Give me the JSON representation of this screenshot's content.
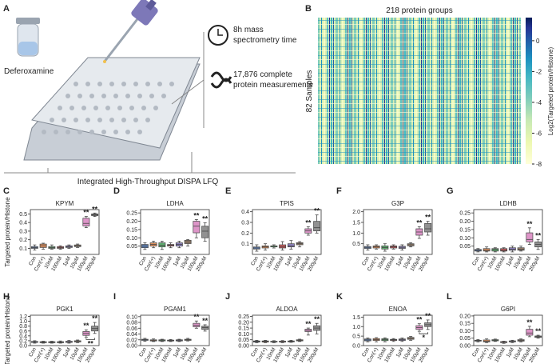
{
  "diagram": {
    "panel": "A",
    "compound": "Deferoxamine",
    "clock_text": [
      "8h mass",
      "spectrometry time"
    ],
    "measure_text": [
      "17,876 complete",
      "protein measurements"
    ],
    "caption": "Integrated High-Throughput DISPA LFQ"
  },
  "heatmap": {
    "panel": "B",
    "title": "218 protein groups",
    "ylabel": "82 Samples",
    "colorbar_label": "Log2(Targeted protein/Histone)",
    "clim": [
      -8,
      1.5
    ],
    "cticks": [
      0,
      -2,
      -4,
      -6,
      -8
    ]
  },
  "chart_data": [
    {
      "type": "box",
      "panel": "C",
      "title": "KPYM",
      "ylabel": "Targeted protein/Histone",
      "categories": [
        "Con",
        "Con(+)",
        "10nM",
        "100nM",
        "1μM",
        "10μM",
        "100μM",
        "200μM"
      ],
      "colors": [
        "#5b7fb8",
        "#e0915e",
        "#60ad70",
        "#c95a5c",
        "#8c80bd",
        "#9a806b",
        "#dd95c8",
        "#919191"
      ],
      "boxes": [
        [
          0.08,
          0.1,
          0.11,
          0.12,
          0.14
        ],
        [
          0.09,
          0.11,
          0.13,
          0.15,
          0.16
        ],
        [
          0.09,
          0.1,
          0.11,
          0.12,
          0.14
        ],
        [
          0.09,
          0.1,
          0.11,
          0.12,
          0.13
        ],
        [
          0.1,
          0.11,
          0.12,
          0.13,
          0.14
        ],
        [
          0.11,
          0.12,
          0.13,
          0.14,
          0.15
        ],
        [
          0.34,
          0.36,
          0.39,
          0.45,
          0.47
        ],
        [
          0.47,
          0.48,
          0.49,
          0.5,
          0.51
        ]
      ],
      "ylim": [
        0.03,
        0.55
      ],
      "yticks": [
        0.1,
        0.2,
        0.3,
        0.4,
        0.5
      ],
      "annotations": [
        {
          "text": "**",
          "category": "100μM"
        },
        {
          "text": "**",
          "category": "200μM"
        }
      ]
    },
    {
      "type": "box",
      "panel": "D",
      "title": "LDHA",
      "categories": [
        "Con",
        "Con(+)",
        "10nM",
        "100nM",
        "1μM",
        "10μM",
        "100μM",
        "200μM"
      ],
      "colors": [
        "#5b7fb8",
        "#e0915e",
        "#60ad70",
        "#c95a5c",
        "#8c80bd",
        "#9a806b",
        "#dd95c8",
        "#919191"
      ],
      "boxes": [
        [
          0.03,
          0.04,
          0.05,
          0.06,
          0.07
        ],
        [
          0.04,
          0.05,
          0.06,
          0.07,
          0.08
        ],
        [
          0.03,
          0.045,
          0.055,
          0.07,
          0.08
        ],
        [
          0.04,
          0.05,
          0.055,
          0.06,
          0.07
        ],
        [
          0.04,
          0.05,
          0.06,
          0.07,
          0.08
        ],
        [
          0.05,
          0.065,
          0.075,
          0.085,
          0.09
        ],
        [
          0.1,
          0.13,
          0.17,
          0.2,
          0.21
        ],
        [
          0.08,
          0.1,
          0.14,
          0.17,
          0.19
        ]
      ],
      "ylim": [
        0,
        0.27
      ],
      "yticks": [
        0.05,
        {
          "value": 0.1,
          "label": "0.10"
        },
        0.15,
        {
          "value": 0.2,
          "label": "0.20"
        },
        0.25
      ],
      "annotations": [
        {
          "text": "**",
          "category": "100μM"
        },
        {
          "text": "**",
          "category": "200μM"
        }
      ]
    },
    {
      "type": "box",
      "panel": "E",
      "title": "TPIS",
      "categories": [
        "Con",
        "Con(+)",
        "10nM",
        "100nM",
        "1μM",
        "10μM",
        "100μM",
        "200μM"
      ],
      "colors": [
        "#5b7fb8",
        "#e0915e",
        "#60ad70",
        "#c95a5c",
        "#8c80bd",
        "#9a806b",
        "#dd95c8",
        "#919191"
      ],
      "boxes": [
        [
          0.03,
          0.05,
          0.06,
          0.07,
          0.09
        ],
        [
          0.04,
          0.06,
          0.07,
          0.08,
          0.1
        ],
        [
          0.06,
          0.07,
          0.08,
          0.08,
          0.09
        ],
        [
          0.04,
          0.06,
          0.07,
          0.09,
          0.12
        ],
        [
          0.05,
          0.07,
          0.08,
          0.1,
          0.13
        ],
        [
          0.07,
          0.09,
          0.1,
          0.11,
          0.12
        ],
        [
          0.18,
          0.2,
          0.22,
          0.24,
          0.26
        ],
        [
          0.2,
          0.22,
          0.25,
          0.31,
          0.37
        ]
      ],
      "ylim": [
        0,
        0.42
      ],
      "yticks": [
        0.1,
        0.2,
        0.3,
        0.4
      ],
      "annotations": [
        {
          "text": "**",
          "category": "100μM"
        },
        {
          "text": "**",
          "category": "200μM"
        }
      ]
    },
    {
      "type": "box",
      "panel": "F",
      "title": "G3P",
      "categories": [
        "Con",
        "Con(+)",
        "10nM",
        "100nM",
        "1μM",
        "10μM",
        "100μM",
        "200μM"
      ],
      "colors": [
        "#5b7fb8",
        "#e0915e",
        "#60ad70",
        "#c95a5c",
        "#8c80bd",
        "#9a806b",
        "#dd95c8",
        "#919191"
      ],
      "boxes": [
        [
          0.2,
          0.28,
          0.33,
          0.37,
          0.45
        ],
        [
          0.25,
          0.3,
          0.35,
          0.4,
          0.45
        ],
        [
          0.15,
          0.25,
          0.32,
          0.4,
          0.5
        ],
        [
          0.25,
          0.3,
          0.35,
          0.4,
          0.45
        ],
        [
          0.2,
          0.28,
          0.33,
          0.38,
          0.45
        ],
        [
          0.35,
          0.4,
          0.45,
          0.5,
          0.55
        ],
        [
          0.75,
          0.9,
          1.05,
          1.2,
          1.3
        ],
        [
          0.9,
          1.05,
          1.2,
          1.45,
          1.55
        ]
      ],
      "ylim": [
        0,
        2.1
      ],
      "yticks": [
        0.5,
        {
          "value": 1,
          "label": "1.0"
        },
        1.5,
        {
          "value": 2,
          "label": "2.0"
        }
      ],
      "annotations": [
        {
          "text": "**",
          "category": "100μM"
        },
        {
          "text": "**",
          "category": "200μM"
        }
      ]
    },
    {
      "type": "box",
      "panel": "G",
      "title": "LDHB",
      "categories": [
        "Con",
        "Con(+)",
        "10nM",
        "100nM",
        "1μM",
        "10μM",
        "100μM",
        "200μM"
      ],
      "colors": [
        "#5b7fb8",
        "#e0915e",
        "#60ad70",
        "#c95a5c",
        "#8c80bd",
        "#9a806b",
        "#dd95c8",
        "#919191"
      ],
      "boxes": [
        [
          0.015,
          0.02,
          0.025,
          0.03,
          0.035
        ],
        [
          0.015,
          0.02,
          0.025,
          0.035,
          0.045
        ],
        [
          0.015,
          0.02,
          0.03,
          0.035,
          0.04
        ],
        [
          0.015,
          0.02,
          0.025,
          0.035,
          0.04
        ],
        [
          0.015,
          0.025,
          0.03,
          0.04,
          0.05
        ],
        [
          0.02,
          0.025,
          0.03,
          0.04,
          0.05
        ],
        [
          0.06,
          0.075,
          0.09,
          0.13,
          0.16
        ],
        [
          0.03,
          0.045,
          0.06,
          0.075,
          0.09
        ]
      ],
      "ylim": [
        0,
        0.27
      ],
      "yticks": [
        0.05,
        {
          "value": 0.1,
          "label": "0.10"
        },
        0.15,
        {
          "value": 0.2,
          "label": "0.20"
        },
        0.25
      ],
      "annotations": [
        {
          "text": "**",
          "category": "100μM"
        },
        {
          "text": "**",
          "category": "200μM"
        }
      ]
    },
    {
      "type": "box",
      "panel": "H",
      "title": "PGK1",
      "ylabel": "Targeted protein/Histone",
      "categories": [
        "Con",
        "Con(+)",
        "10nM",
        "100nM",
        "1μM",
        "10μM",
        "100μM",
        "200μM"
      ],
      "colors": [
        "#5b7fb8",
        "#e0915e",
        "#60ad70",
        "#c95a5c",
        "#8c80bd",
        "#9a806b",
        "#dd95c8",
        "#919191"
      ],
      "boxes": [
        [
          0.1,
          0.13,
          0.15,
          0.17,
          0.2
        ],
        [
          0.1,
          0.12,
          0.14,
          0.16,
          0.18
        ],
        [
          0.1,
          0.12,
          0.14,
          0.16,
          0.18
        ],
        [
          0.1,
          0.12,
          0.14,
          0.16,
          0.19
        ],
        [
          0.1,
          0.13,
          0.15,
          0.18,
          0.21
        ],
        [
          0.12,
          0.15,
          0.17,
          0.2,
          0.23
        ],
        [
          0.35,
          0.42,
          0.5,
          0.58,
          0.65
        ],
        [
          0.5,
          0.6,
          0.7,
          0.8,
          0.95
        ]
      ],
      "ylim": [
        0,
        1.25
      ],
      "yticks": [
        {
          "value": 0,
          "label": "0.0"
        },
        0.2,
        0.4,
        0.6,
        0.8,
        {
          "value": 1,
          "label": "1.0"
        },
        1.2
      ],
      "annotations": [
        {
          "text": "**",
          "category": "100μM"
        },
        {
          "text": "**",
          "category": "200μM"
        },
        {
          "text": "**",
          "between": [
            "100μM",
            "200μM"
          ]
        }
      ]
    },
    {
      "type": "box",
      "panel": "I",
      "title": "PGAM1",
      "categories": [
        "Con",
        "Con(+)",
        "10nM",
        "100nM",
        "1μM",
        "10μM",
        "100μM",
        "200μM"
      ],
      "colors": [
        "#5b7fb8",
        "#e0915e",
        "#60ad70",
        "#c95a5c",
        "#8c80bd",
        "#9a806b",
        "#dd95c8",
        "#919191"
      ],
      "boxes": [
        [
          0.015,
          0.018,
          0.02,
          0.022,
          0.025
        ],
        [
          0.014,
          0.016,
          0.018,
          0.02,
          0.023
        ],
        [
          0.014,
          0.016,
          0.018,
          0.02,
          0.022
        ],
        [
          0.014,
          0.016,
          0.017,
          0.019,
          0.021
        ],
        [
          0.014,
          0.016,
          0.018,
          0.02,
          0.022
        ],
        [
          0.016,
          0.018,
          0.02,
          0.022,
          0.025
        ],
        [
          0.06,
          0.065,
          0.07,
          0.077,
          0.085
        ],
        [
          0.05,
          0.056,
          0.062,
          0.067,
          0.072
        ]
      ],
      "ylim": [
        0,
        0.105
      ],
      "yticks": [
        {
          "value": 0,
          "label": "0.00"
        },
        0.02,
        0.04,
        0.06,
        0.08,
        {
          "value": 0.1,
          "label": "0.10"
        }
      ],
      "annotations": [
        {
          "text": "**",
          "category": "100μM"
        },
        {
          "text": "**",
          "category": "200μM"
        }
      ]
    },
    {
      "type": "box",
      "panel": "J",
      "title": "ALDOA",
      "categories": [
        "Con",
        "Con(+)",
        "10nM",
        "100nM",
        "1μM",
        "10μM",
        "100μM",
        "200μM"
      ],
      "colors": [
        "#5b7fb8",
        "#e0915e",
        "#60ad70",
        "#c95a5c",
        "#8c80bd",
        "#9a806b",
        "#dd95c8",
        "#919191"
      ],
      "boxes": [
        [
          0.025,
          0.03,
          0.035,
          0.04,
          0.045
        ],
        [
          0.025,
          0.03,
          0.035,
          0.04,
          0.045
        ],
        [
          0.025,
          0.03,
          0.033,
          0.037,
          0.042
        ],
        [
          0.025,
          0.03,
          0.034,
          0.038,
          0.043
        ],
        [
          0.028,
          0.032,
          0.036,
          0.04,
          0.045
        ],
        [
          0.035,
          0.04,
          0.045,
          0.05,
          0.055
        ],
        [
          0.09,
          0.12,
          0.13,
          0.14,
          0.15
        ],
        [
          0.1,
          0.13,
          0.15,
          0.17,
          0.19
        ]
      ],
      "ylim": [
        0,
        0.26
      ],
      "yticks": [
        {
          "value": 0,
          "label": "0.00"
        },
        0.05,
        {
          "value": 0.1,
          "label": "0.10"
        },
        0.15,
        {
          "value": 0.2,
          "label": "0.20"
        },
        0.25
      ],
      "annotations": [
        {
          "text": "**",
          "category": "100μM"
        },
        {
          "text": "**",
          "category": "200μM"
        }
      ]
    },
    {
      "type": "box",
      "panel": "K",
      "title": "ENOA",
      "categories": [
        "Con",
        "Con(+)",
        "10nM",
        "100nM",
        "1μM",
        "10μM",
        "100μM",
        "200μM"
      ],
      "colors": [
        "#5b7fb8",
        "#e0915e",
        "#60ad70",
        "#c95a5c",
        "#8c80bd",
        "#9a806b",
        "#dd95c8",
        "#919191"
      ],
      "boxes": [
        [
          0.2,
          0.25,
          0.3,
          0.35,
          0.4
        ],
        [
          0.2,
          0.27,
          0.32,
          0.37,
          0.42
        ],
        [
          0.2,
          0.26,
          0.31,
          0.36,
          0.41
        ],
        [
          0.22,
          0.27,
          0.3,
          0.33,
          0.37
        ],
        [
          0.22,
          0.27,
          0.31,
          0.35,
          0.4
        ],
        [
          0.28,
          0.33,
          0.38,
          0.43,
          0.48
        ],
        [
          0.75,
          0.85,
          0.95,
          1.05,
          1.15
        ],
        [
          0.85,
          1,
          1.1,
          1.2,
          1.35
        ]
      ],
      "ylim": [
        0,
        1.6
      ],
      "yticks": [
        {
          "value": 0,
          "label": "0.0"
        },
        0.5,
        {
          "value": 1,
          "label": "1.0"
        },
        1.5
      ],
      "annotations": [
        {
          "text": "**",
          "category": "100μM"
        },
        {
          "text": "**",
          "category": "200μM"
        },
        {
          "text": "*",
          "between": [
            "100μM",
            "200μM"
          ]
        }
      ]
    },
    {
      "type": "box",
      "panel": "L",
      "title": "G6PI",
      "categories": [
        "Con",
        "Con(+)",
        "10nM",
        "100nM",
        "1μM",
        "10μM",
        "100μM",
        "200μM"
      ],
      "colors": [
        "#5b7fb8",
        "#e0915e",
        "#60ad70",
        "#c95a5c",
        "#8c80bd",
        "#9a806b",
        "#dd95c8",
        "#919191"
      ],
      "boxes": [
        [
          0.025,
          0.03,
          0.033,
          0.036,
          0.04
        ],
        [
          0.02,
          0.025,
          0.03,
          0.038,
          0.045
        ],
        [
          0.028,
          0.032,
          0.036,
          0.04,
          0.044
        ],
        [
          0.015,
          0.02,
          0.023,
          0.027,
          0.03
        ],
        [
          0.02,
          0.025,
          0.028,
          0.032,
          0.036
        ],
        [
          0.025,
          0.03,
          0.035,
          0.04,
          0.045
        ],
        [
          0.06,
          0.07,
          0.085,
          0.11,
          0.13
        ],
        [
          0.05,
          0.055,
          0.06,
          0.065,
          0.07
        ]
      ],
      "ylim": [
        0,
        0.205
      ],
      "yticks": [
        {
          "value": 0,
          "label": "0.00"
        },
        0.05,
        {
          "value": 0.1,
          "label": "0.10"
        },
        0.15,
        {
          "value": 0.2,
          "label": "0.20"
        }
      ],
      "annotations": [
        {
          "text": "**",
          "category": "100μM"
        },
        {
          "text": "**",
          "category": "200μM"
        }
      ]
    }
  ]
}
